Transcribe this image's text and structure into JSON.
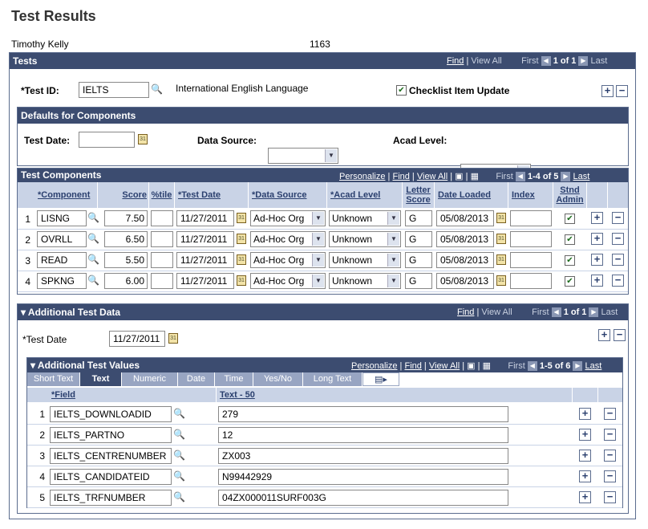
{
  "page": {
    "title": "Test Results",
    "person_name": "Timothy Kelly",
    "person_id": "1163"
  },
  "tests": {
    "header": "Tests",
    "find": "Find",
    "view_all": "View All",
    "first": "First",
    "last": "Last",
    "count": "1 of 1",
    "test_id_label": "*Test ID:",
    "test_id_value": "IELTS",
    "test_desc": "International English Language",
    "checklist_label": "Checklist Item Update",
    "checklist_checked": true
  },
  "defaults": {
    "header": "Defaults for Components",
    "test_date_label": "Test Date:",
    "data_source_label": "Data Source:",
    "acad_level_label": "Acad Level:"
  },
  "components": {
    "header": "Test Components",
    "personalize": "Personalize",
    "find": "Find",
    "view_all": "View All",
    "first": "First",
    "last": "Last",
    "count": "1-4 of 5",
    "columns": [
      "*Component",
      "Score",
      "%tile",
      "*Test Date",
      "*Data Source",
      "*Acad Level",
      "Letter Score",
      "Date Loaded",
      "Index",
      "Stnd Admin"
    ],
    "rows": [
      {
        "n": "1",
        "component": "LISNG",
        "score": "7.50",
        "tile": "",
        "test_date": "11/27/2011",
        "data_source": "Ad-Hoc Org",
        "acad_level": "Unknown",
        "letter": "G",
        "date_loaded": "05/08/2013",
        "index": "",
        "stnd": true
      },
      {
        "n": "2",
        "component": "OVRLL",
        "score": "6.50",
        "tile": "",
        "test_date": "11/27/2011",
        "data_source": "Ad-Hoc Org",
        "acad_level": "Unknown",
        "letter": "G",
        "date_loaded": "05/08/2013",
        "index": "",
        "stnd": true
      },
      {
        "n": "3",
        "component": "READ",
        "score": "5.50",
        "tile": "",
        "test_date": "11/27/2011",
        "data_source": "Ad-Hoc Org",
        "acad_level": "Unknown",
        "letter": "G",
        "date_loaded": "05/08/2013",
        "index": "",
        "stnd": true
      },
      {
        "n": "4",
        "component": "SPKNG",
        "score": "6.00",
        "tile": "",
        "test_date": "11/27/2011",
        "data_source": "Ad-Hoc Org",
        "acad_level": "Unknown",
        "letter": "G",
        "date_loaded": "05/08/2013",
        "index": "",
        "stnd": true
      }
    ]
  },
  "additional": {
    "header": "Additional Test Data",
    "find": "Find",
    "view_all": "View All",
    "first": "First",
    "last": "Last",
    "count": "1 of 1",
    "test_date_label": "*Test Date",
    "test_date_value": "11/27/2011"
  },
  "values": {
    "header": "Additional Test Values",
    "personalize": "Personalize",
    "find": "Find",
    "view_all": "View All",
    "first": "First",
    "last": "Last",
    "count": "1-5 of 6",
    "tabs": [
      "Short Text",
      "Text",
      "Numeric",
      "Date",
      "Time",
      "Yes/No",
      "Long Text"
    ],
    "active_tab": "Text",
    "col_field": "*Field",
    "col_text": "Text - 50",
    "rows": [
      {
        "n": "1",
        "field": "IELTS_DOWNLOADID",
        "text": "279"
      },
      {
        "n": "2",
        "field": "IELTS_PARTNO",
        "text": "12"
      },
      {
        "n": "3",
        "field": "IELTS_CENTRENUMBER",
        "text": "ZX003"
      },
      {
        "n": "4",
        "field": "IELTS_CANDIDATEID",
        "text": "N99442929"
      },
      {
        "n": "5",
        "field": "IELTS_TRFNUMBER",
        "text": "04ZX000011SURF003G"
      }
    ]
  }
}
